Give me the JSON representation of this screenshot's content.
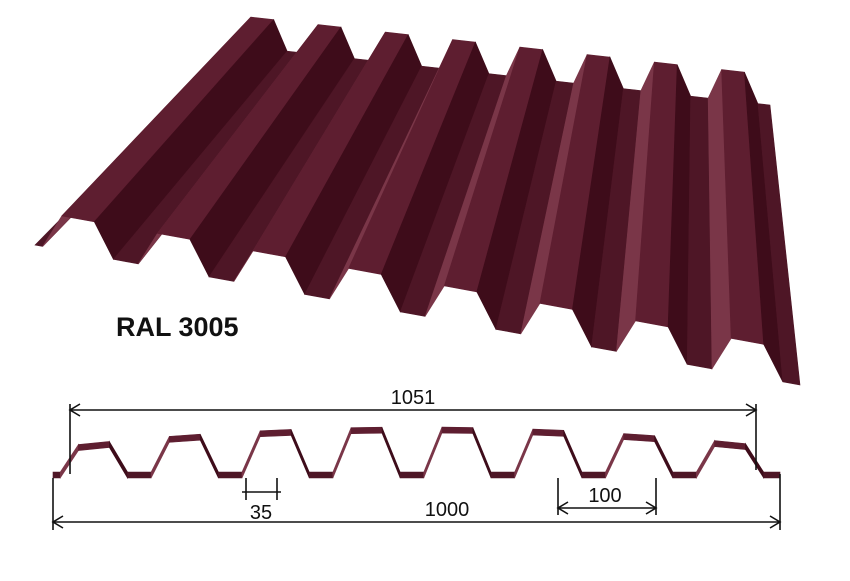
{
  "product": {
    "color_code": "RAL 3005",
    "color_hex": "#5a1a2c"
  },
  "dimensions": {
    "overall_width": "1051",
    "useful_width": "1000",
    "rib_pitch": "100",
    "valley_width": "35"
  }
}
